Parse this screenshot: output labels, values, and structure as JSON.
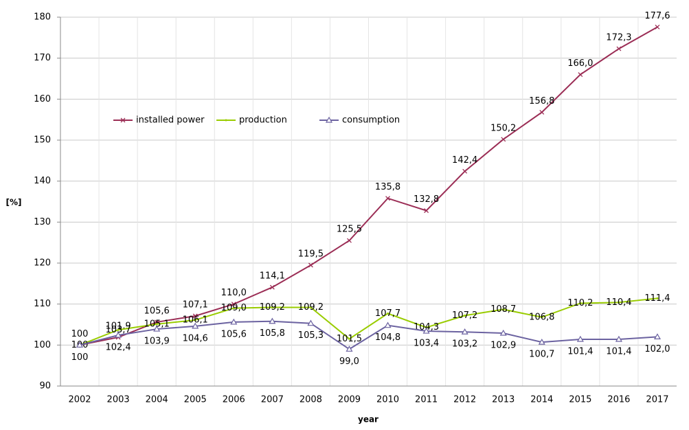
{
  "chart_data": {
    "type": "line",
    "categories": [
      "2002",
      "2003",
      "2004",
      "2005",
      "2006",
      "2007",
      "2008",
      "2009",
      "2010",
      "2011",
      "2012",
      "2013",
      "2014",
      "2015",
      "2016",
      "2017"
    ],
    "series": [
      {
        "name": "installed power",
        "color": "#9b2d55",
        "marker": "x",
        "values": [
          100,
          101.9,
          105.6,
          107.1,
          110.0,
          114.1,
          119.5,
          125.5,
          135.8,
          132.8,
          142.4,
          150.2,
          156.8,
          166.0,
          172.3,
          177.6
        ],
        "value_labels": [
          "100",
          "101,9",
          "105,6",
          "107,1",
          "110,0",
          "114,1",
          "119,5",
          "125,5",
          "135,8",
          "132,8",
          "142,4",
          "150,2",
          "156,8",
          "166,0",
          "172,3",
          "177,6"
        ]
      },
      {
        "name": "production",
        "color": "#99cc00",
        "marker": "none",
        "values": [
          100,
          103.7,
          105.1,
          106.1,
          109.0,
          109.2,
          109.2,
          101.5,
          107.7,
          104.3,
          107.2,
          108.7,
          106.8,
          110.2,
          110.4,
          111.4
        ],
        "value_labels": [
          "100",
          "103,7",
          "105,1",
          "106,1",
          "109,0",
          "109,2",
          "109,2",
          "101,5",
          "107,7",
          "104,3",
          "107,2",
          "108,7",
          "106,8",
          "110,2",
          "110,4",
          "111,4"
        ]
      },
      {
        "name": "consumption",
        "color": "#6b62a0",
        "marker": "triangle",
        "values": [
          100,
          102.4,
          103.9,
          104.6,
          105.6,
          105.8,
          105.3,
          99.0,
          104.8,
          103.4,
          103.2,
          102.9,
          100.7,
          101.4,
          101.4,
          102.0
        ],
        "value_labels": [
          "100",
          "102,4",
          "103,9",
          "104,6",
          "105,6",
          "105,8",
          "105,3",
          "99,0",
          "104,8",
          "103,4",
          "103,2",
          "102,9",
          "100,7",
          "101,4",
          "101,4",
          "102,0"
        ]
      }
    ],
    "y_label": "[%]",
    "x_label": "year",
    "ylim": [
      90,
      180
    ],
    "yticks": [
      90,
      100,
      110,
      120,
      130,
      140,
      150,
      160,
      170,
      180
    ],
    "grid": true,
    "legend": "upper left"
  }
}
